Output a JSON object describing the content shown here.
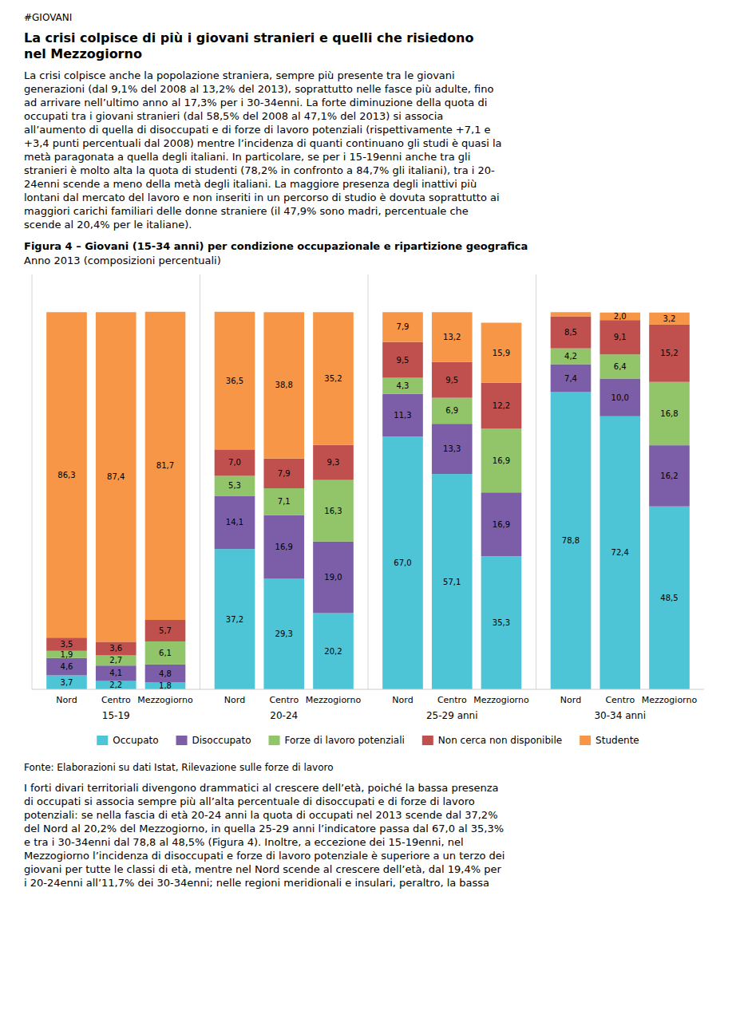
{
  "header_tag": "#GIOVANI",
  "heading": [
    "La crisi colpisce di più i giovani stranieri e quelli che risiedono",
    "nel Mezzogiorno"
  ],
  "body": [
    "La crisi colpisce anche la popolazione straniera, sempre più presente tra le giovani",
    "generazioni (dal 9,1% del 2008 al 13,2% del 2013), soprattutto nelle fasce più adulte, fino",
    "ad arrivare nell’ultimo anno al 17,3% per i 30-34enni. La forte diminuzione della quota di",
    "occupati tra i giovani stranieri (dal 58,5% del 2008 al 47,1% del 2013) si associa",
    "all’aumento di quella di disoccupati e di forze di lavoro potenziali (rispettivamente +7,1 e",
    "+3,4 punti percentuali dal 2008) mentre l’incidenza di quanti continuano gli studi è quasi la",
    "metà paragonata a quella degli italiani. In particolare, se per i 15-19enni anche tra gli",
    "stranieri è molto alta la quota di studenti (78,2% in confronto a 84,7% gli italiani), tra i 20-",
    "24enni scende a meno della metà degli italiani. La maggiore presenza degli inattivi più",
    "lontani dal mercato del lavoro e non inseriti in un percorso di studio è dovuta soprattutto ai",
    "maggiori carichi familiari delle donne straniere (il 47,9% sono madri, percentuale che",
    "scende al 20,4% per le italiane)."
  ],
  "source": "Fonte: Elaborazioni su dati Istat, Rilevazione sulle forze di lavoro",
  "footer": [
    "I forti divari territoriali divengono drammatici al crescere dell’età, poiché la bassa presenza",
    "di occupati si associa sempre più all’alta percentuale di disoccupati e di forze di lavoro",
    "potenziali: se nella fascia di età 20-24 anni la quota di occupati nel 2013 scende dal 37,2%",
    "del Nord al 20,2% del Mezzogiorno, in quella 25-29 anni l’indicatore passa dal 67,0 al 35,3%",
    "e tra i 30-34enni dal 78,8 al 48,5% (Figura 4). Inoltre, a eccezione dei 15-19enni, nel",
    "Mezzogiorno l’incidenza di disoccupati e forze di lavoro potenziale è superiore a un terzo dei",
    "giovani per tutte le classi di età, mentre nel Nord scende al crescere dell’età, dal 19,4% per",
    "i 20-24enni all’11,7% dei 30-34enni; nelle regioni meridionali e insulari, peraltro, la bassa"
  ],
  "chart_data": {
    "type": "bar",
    "stacked": true,
    "title": "Figura 4 – Giovani (15-34 anni) per condizione occupazionale e ripartizione geografica",
    "subtitle": "Anno 2013 (composizioni percentuali)",
    "categories": [
      "Nord",
      "Centro",
      "Mezzogiorno",
      "Nord",
      "Centro",
      "Mezzogiorno",
      "Nord",
      "Centro",
      "Mezzogiorno",
      "Nord",
      "Centro",
      "Mezzogiorno"
    ],
    "groups": [
      "15-19",
      "20-24",
      "25-29 anni",
      "30-34 anni"
    ],
    "ylim": [
      0,
      110
    ],
    "tick_labels": "x",
    "grid": false,
    "legend": "bottom",
    "data_labels": true,
    "series": [
      {
        "name": "Occupato",
        "color": "#4DC5D6",
        "values": [
          3.7,
          2.2,
          1.8,
          37.2,
          29.3,
          20.2,
          67.0,
          57.1,
          35.3,
          78.8,
          72.4,
          48.5
        ],
        "value_labels": [
          "3,7",
          "2,2",
          "1,8",
          "37,2",
          "29,3",
          "20,2",
          "67,0",
          "57,1",
          "35,3",
          "78,8",
          "72,4",
          "48,5"
        ]
      },
      {
        "name": "Disoccupato",
        "color": "#7B5EA7",
        "values": [
          4.6,
          4.1,
          4.8,
          14.1,
          16.9,
          19.0,
          11.3,
          13.3,
          16.9,
          7.4,
          10.0,
          16.2
        ],
        "value_labels": [
          "4,6",
          "4,1",
          "4,8",
          "14,1",
          "16,9",
          "19,0",
          "11,3",
          "13,3",
          "16,9",
          "7,4",
          "10,0",
          "16,2"
        ]
      },
      {
        "name": "Forze di lavoro potenziali",
        "color": "#92C46A",
        "values": [
          1.9,
          2.7,
          6.1,
          5.3,
          7.1,
          16.3,
          4.3,
          6.9,
          16.9,
          4.2,
          6.4,
          16.8
        ],
        "value_labels": [
          "1,9",
          "2,7",
          "6,1",
          "5,3",
          "7,1",
          "16,3",
          "4,3",
          "6,9",
          "16,9",
          "4,2",
          "6,4",
          "16,8"
        ]
      },
      {
        "name": "Non cerca non disponibile",
        "color": "#C0504D",
        "values": [
          3.5,
          3.6,
          5.7,
          7.0,
          7.9,
          9.3,
          9.5,
          9.5,
          12.2,
          8.5,
          9.1,
          15.2
        ],
        "value_labels": [
          "3,5",
          "3,6",
          "5,7",
          "7,0",
          "7,9",
          "9,3",
          "9,5",
          "9,5",
          "12,2",
          "8,5",
          "9,1",
          "15,2"
        ]
      },
      {
        "name": "Studente",
        "color": "#F79646",
        "values": [
          86.3,
          87.4,
          81.7,
          36.5,
          38.8,
          35.2,
          7.9,
          13.2,
          15.9,
          1.1,
          2.0,
          3.2
        ],
        "value_labels": [
          "86,3",
          "87,4",
          "81,7",
          "36,5",
          "38,8",
          "35,2",
          "7,9",
          "13,2",
          "15,9",
          null,
          "2,0",
          "3,2"
        ]
      }
    ]
  }
}
